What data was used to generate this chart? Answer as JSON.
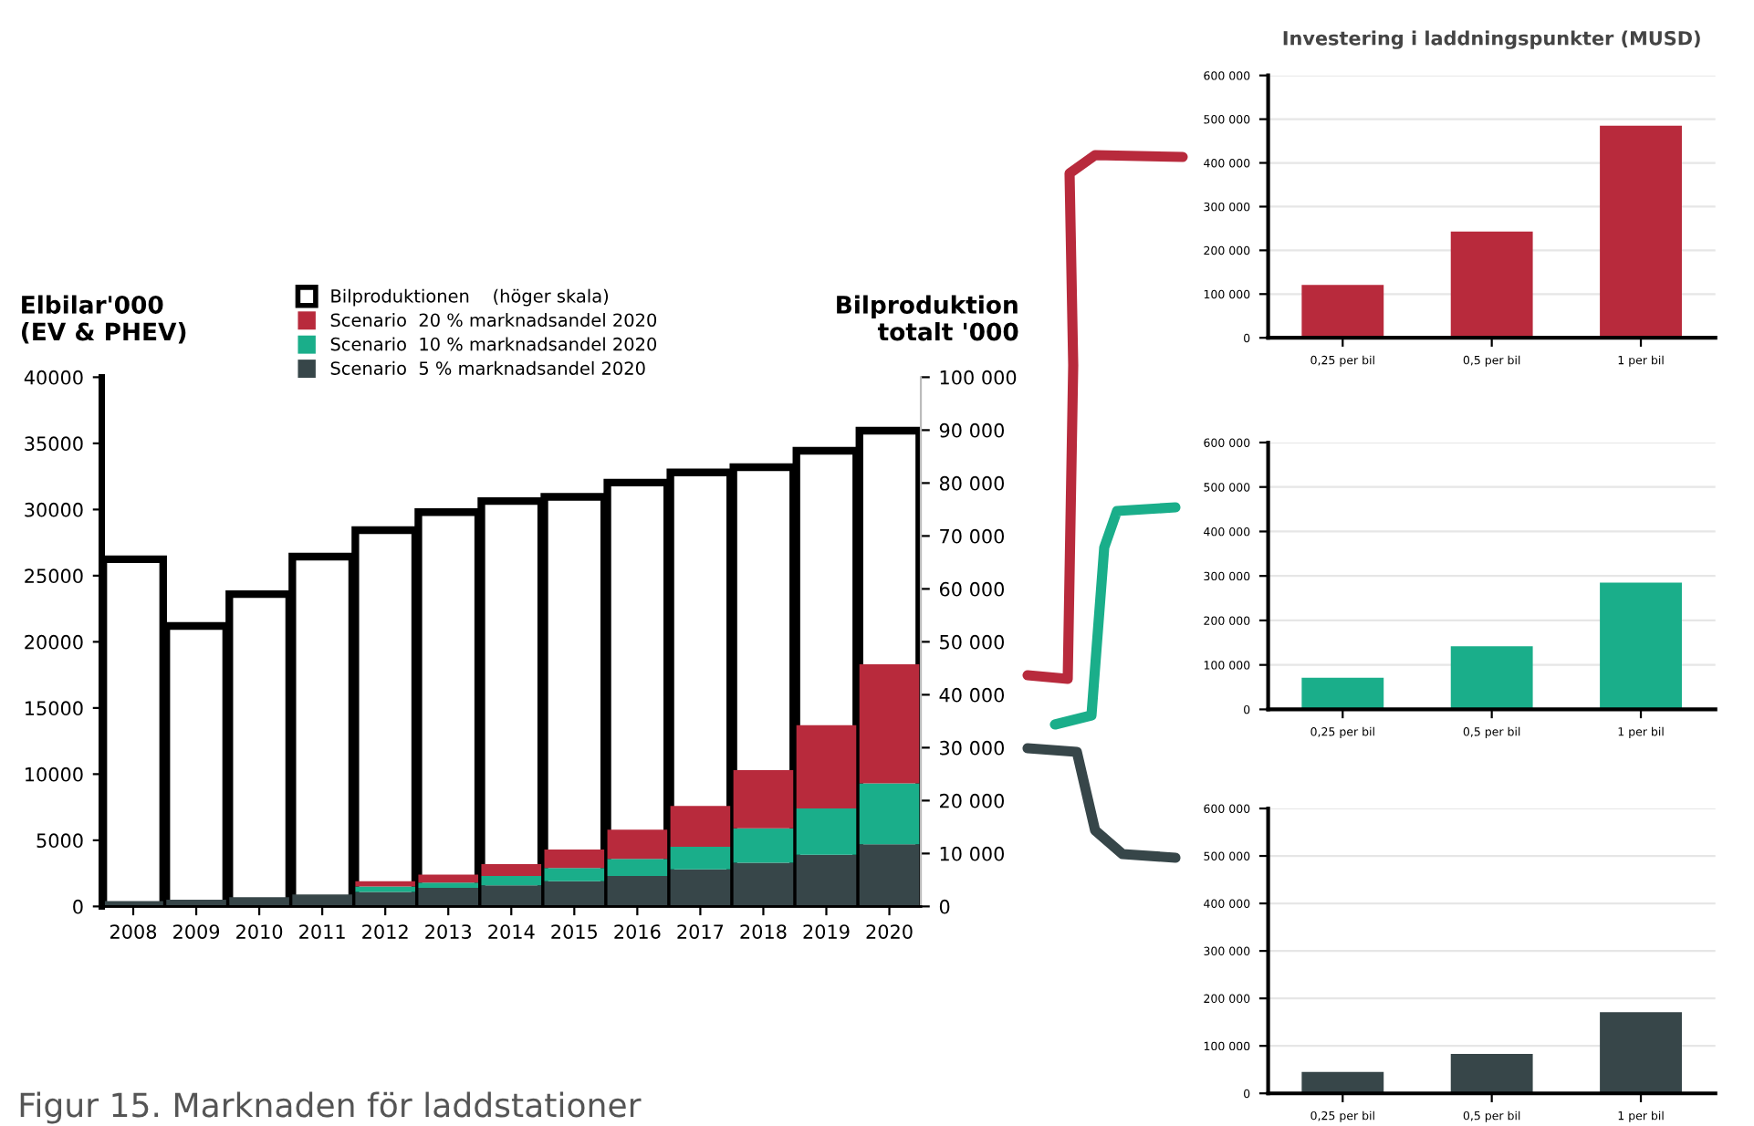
{
  "chart_data": [
    {
      "type": "bar",
      "ylabel": "Elbilar'000\n(EV & PHEV)",
      "y2label": "Bilproduktion\ntotalt '000",
      "categories": [
        "2008",
        "2009",
        "2010",
        "2011",
        "2012",
        "2013",
        "2014",
        "2015",
        "2016",
        "2017",
        "2018",
        "2019",
        "2020"
      ],
      "stacked": true,
      "legend": "top",
      "grid": false,
      "series": [
        {
          "name": "Bilproduktionen    (höger skala)",
          "color": "#ffffff",
          "axis": "y2",
          "values": [
            65600,
            53000,
            59000,
            66100,
            71100,
            74500,
            76600,
            77400,
            80100,
            82000,
            83000,
            86100,
            89900
          ]
        },
        {
          "name": "Scenario  5 % marknadsandel 2020",
          "color": "#374649",
          "values": [
            400,
            500,
            700,
            900,
            1100,
            1400,
            1600,
            1900,
            2300,
            2800,
            3300,
            3900,
            4700
          ]
        },
        {
          "name": "Scenario  10 % marknadsandel 2020",
          "color": "#1aae8a",
          "values": [
            0,
            0,
            0,
            0,
            400,
            400,
            700,
            1000,
            1300,
            1700,
            2600,
            3500,
            4600
          ]
        },
        {
          "name": "Scenario  20 % marknadsandel 2020",
          "color": "#b82a3c",
          "values": [
            0,
            0,
            0,
            0,
            400,
            600,
            900,
            1400,
            2200,
            3100,
            4400,
            6300,
            9000
          ]
        }
      ],
      "ylim": [
        0,
        40000
      ],
      "yticks": [
        0,
        5000,
        10000,
        15000,
        20000,
        25000,
        30000,
        35000,
        40000
      ],
      "y2lim": [
        0,
        100000
      ],
      "y2ticks": [
        {
          "value": 0,
          "label": "0"
        },
        {
          "value": 10000,
          "label": "10 000"
        },
        {
          "value": 20000,
          "label": "20 000"
        },
        {
          "value": 30000,
          "label": "30 000"
        },
        {
          "value": 40000,
          "label": "40 000"
        },
        {
          "value": 50000,
          "label": "50 000"
        },
        {
          "value": 60000,
          "label": "60 000"
        },
        {
          "value": 70000,
          "label": "70 000"
        },
        {
          "value": 80000,
          "label": "80 000"
        },
        {
          "value": 90000,
          "label": "90 000"
        },
        {
          "value": 100000,
          "label": "100 000"
        }
      ],
      "annotations": [
        "Figur 15. Marknaden för laddstationer"
      ]
    },
    {
      "type": "bar",
      "title": "Investering i laddningspunkter (MUSD)",
      "categories": [
        "0,25 per bil",
        "0,5 per bil",
        "1 per bil"
      ],
      "values": [
        121000,
        243000,
        485000
      ],
      "color": "#b82a3c",
      "grid": "y",
      "ylim": [
        0,
        600000
      ],
      "yticks": [
        {
          "value": 0,
          "label": "0"
        },
        {
          "value": 100000,
          "label": "100 000"
        },
        {
          "value": 200000,
          "label": "200 000"
        },
        {
          "value": 300000,
          "label": "300 000"
        },
        {
          "value": 400000,
          "label": "400 000"
        },
        {
          "value": 500000,
          "label": "500 000"
        },
        {
          "value": 600000,
          "label": "600 000"
        }
      ]
    },
    {
      "type": "bar",
      "categories": [
        "0,25 per bil",
        "0,5 per bil",
        "1 per bil"
      ],
      "values": [
        71000,
        142000,
        285000
      ],
      "color": "#1aae8a",
      "grid": "y",
      "ylim": [
        0,
        600000
      ],
      "yticks": [
        {
          "value": 0,
          "label": "0"
        },
        {
          "value": 100000,
          "label": "100 000"
        },
        {
          "value": 200000,
          "label": "200 000"
        },
        {
          "value": 300000,
          "label": "300 000"
        },
        {
          "value": 400000,
          "label": "400 000"
        },
        {
          "value": 500000,
          "label": "500 000"
        },
        {
          "value": 600000,
          "label": "600 000"
        }
      ]
    },
    {
      "type": "bar",
      "categories": [
        "0,25 per bil",
        "0,5 per bil",
        "1 per bil"
      ],
      "values": [
        45000,
        83000,
        171000
      ],
      "color": "#374649",
      "grid": "y",
      "ylim": [
        0,
        600000
      ],
      "yticks": [
        {
          "value": 0,
          "label": "0"
        },
        {
          "value": 100000,
          "label": "100 000"
        },
        {
          "value": 200000,
          "label": "200 000"
        },
        {
          "value": 300000,
          "label": "300 000"
        },
        {
          "value": 400000,
          "label": "400 000"
        },
        {
          "value": 500000,
          "label": "500 000"
        },
        {
          "value": 600000,
          "label": "600 000"
        }
      ]
    }
  ]
}
